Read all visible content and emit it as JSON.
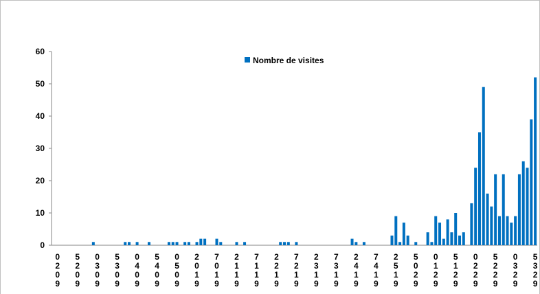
{
  "chart_data": {
    "type": "bar",
    "series": [
      {
        "name": "Nombre de visites",
        "color": "#0070c0",
        "values": [
          0,
          0,
          0,
          0,
          0,
          0,
          0,
          0,
          0,
          0,
          1,
          0,
          0,
          0,
          0,
          0,
          0,
          0,
          1,
          1,
          0,
          1,
          0,
          0,
          1,
          0,
          0,
          0,
          0,
          1,
          1,
          1,
          0,
          1,
          1,
          0,
          1,
          2,
          2,
          0,
          0,
          2,
          1,
          0,
          0,
          0,
          1,
          0,
          1,
          0,
          0,
          0,
          0,
          0,
          0,
          0,
          0,
          1,
          1,
          1,
          0,
          1,
          0,
          0,
          0,
          0,
          0,
          0,
          0,
          0,
          0,
          0,
          0,
          0,
          0,
          2,
          1,
          0,
          1,
          0,
          0,
          0,
          0,
          0,
          0,
          3,
          9,
          1,
          7,
          3,
          0,
          1,
          0,
          0,
          4,
          1,
          9,
          7,
          2,
          8,
          4,
          10,
          3,
          4,
          0,
          13,
          24,
          35,
          49,
          16,
          12,
          22,
          9,
          22,
          9,
          7,
          9,
          22,
          26,
          24,
          39,
          52
        ]
      }
    ],
    "categories": [
      null,
      "0209",
      null,
      null,
      null,
      null,
      "5209",
      null,
      null,
      null,
      null,
      "0309",
      null,
      null,
      null,
      null,
      "5309",
      null,
      null,
      null,
      null,
      "0409",
      null,
      null,
      null,
      null,
      "5409",
      null,
      null,
      null,
      null,
      "0509",
      null,
      null,
      null,
      null,
      "2019",
      null,
      null,
      null,
      null,
      "7019",
      null,
      null,
      null,
      null,
      "2119",
      null,
      null,
      null,
      null,
      "7119",
      null,
      null,
      null,
      null,
      "2219",
      null,
      null,
      null,
      null,
      "7219",
      null,
      null,
      null,
      null,
      "2319",
      null,
      null,
      null,
      null,
      "7319",
      null,
      null,
      null,
      null,
      "2419",
      null,
      null,
      null,
      null,
      "7419",
      null,
      null,
      null,
      null,
      "2519",
      null,
      null,
      null,
      null,
      "5029",
      null,
      null,
      null,
      null,
      "0129",
      null,
      null,
      null,
      null,
      "5129",
      null,
      null,
      null,
      null,
      "0229",
      null,
      null,
      null,
      null,
      "5229",
      null,
      null,
      null,
      null,
      "0329",
      null,
      null,
      null,
      null,
      "5329"
    ],
    "ylim": [
      0,
      60
    ],
    "yticks": [
      0,
      10,
      20,
      30,
      40,
      50,
      60
    ],
    "grid": false,
    "legend": "top"
  }
}
